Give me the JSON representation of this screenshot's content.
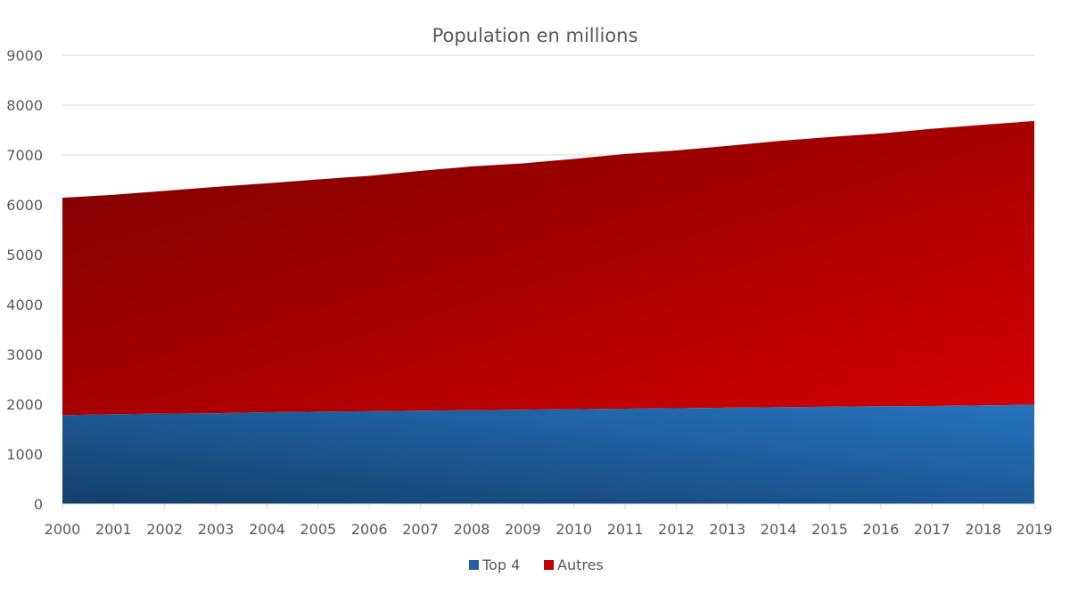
{
  "chart_data": {
    "type": "area",
    "stacked": true,
    "title": "Population en millions",
    "xlabel": "",
    "ylabel": "",
    "x": [
      "2000",
      "2001",
      "2002",
      "2003",
      "2004",
      "2005",
      "2006",
      "2007",
      "2008",
      "2009",
      "2010",
      "2011",
      "2012",
      "2013",
      "2014",
      "2015",
      "2016",
      "2017",
      "2018",
      "2019"
    ],
    "ylim": [
      0,
      9000
    ],
    "yticks": [
      0,
      1000,
      2000,
      3000,
      4000,
      5000,
      6000,
      7000,
      8000,
      9000
    ],
    "grid": true,
    "legend_position": "bottom",
    "series": [
      {
        "name": "Top 4",
        "color": "#1f5f9f",
        "values": [
          1780,
          1800,
          1810,
          1820,
          1840,
          1850,
          1860,
          1870,
          1880,
          1890,
          1900,
          1910,
          1920,
          1930,
          1940,
          1950,
          1960,
          1965,
          1975,
          1990
        ]
      },
      {
        "name": "Autres",
        "color": "#b30000",
        "values": [
          4360,
          4400,
          4470,
          4540,
          4590,
          4660,
          4720,
          4810,
          4890,
          4940,
          5020,
          5110,
          5170,
          5250,
          5340,
          5410,
          5470,
          5560,
          5630,
          5690
        ]
      }
    ]
  }
}
